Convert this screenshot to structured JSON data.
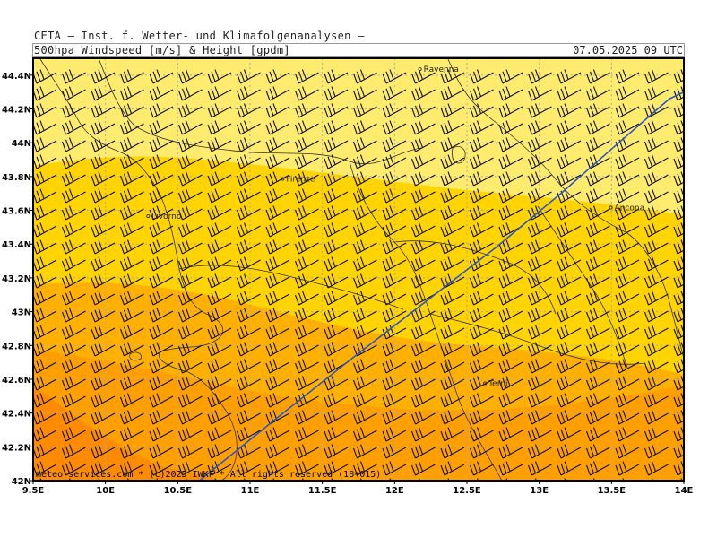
{
  "header": {
    "title": "CETA — Inst. f. Wetter- und Klimafolgenanalysen —",
    "parameter": "500hpa Windspeed [m/s] & Height [gpdm]",
    "datetime": "07.05.2025 09 UTC"
  },
  "map": {
    "lon_range": [
      9.5,
      14
    ],
    "lat_range": [
      42,
      44.5
    ],
    "lon_ticks": [
      {
        "value": 9.5,
        "label": "9.5E"
      },
      {
        "value": 10,
        "label": "10E"
      },
      {
        "value": 10.5,
        "label": "10.5E"
      },
      {
        "value": 11,
        "label": "11E"
      },
      {
        "value": 11.5,
        "label": "11.5E"
      },
      {
        "value": 12,
        "label": "12E"
      },
      {
        "value": 12.5,
        "label": "12.5E"
      },
      {
        "value": 13,
        "label": "13E"
      },
      {
        "value": 13.5,
        "label": "13.5E"
      },
      {
        "value": 14,
        "label": "14E"
      }
    ],
    "lat_ticks": [
      {
        "value": 42,
        "label": "42N"
      },
      {
        "value": 42.2,
        "label": "42.2N"
      },
      {
        "value": 42.4,
        "label": "42.4N"
      },
      {
        "value": 42.6,
        "label": "42.6N"
      },
      {
        "value": 42.8,
        "label": "42.8N"
      },
      {
        "value": 43,
        "label": "43N"
      },
      {
        "value": 43.2,
        "label": "43.2N"
      },
      {
        "value": 43.4,
        "label": "43.4N"
      },
      {
        "value": 43.6,
        "label": "43.6N"
      },
      {
        "value": 43.8,
        "label": "43.8N"
      },
      {
        "value": 44,
        "label": "44N"
      },
      {
        "value": 44.2,
        "label": "44.2N"
      },
      {
        "value": 44.4,
        "label": "44.4N"
      }
    ],
    "cities": [
      {
        "name": "Ravenna",
        "lon": 12.2,
        "lat": 44.42
      },
      {
        "name": "Firenze",
        "lon": 11.25,
        "lat": 43.77
      },
      {
        "name": "Livorno",
        "lon": 10.32,
        "lat": 43.55
      },
      {
        "name": "Ancona",
        "lon": 13.52,
        "lat": 43.6
      },
      {
        "name": "Terni",
        "lon": 12.65,
        "lat": 42.56
      }
    ],
    "height_contour": [
      {
        "lon": 10.65,
        "lat": 42.0
      },
      {
        "lon": 11.2,
        "lat": 42.38
      },
      {
        "lon": 11.7,
        "lat": 42.72
      },
      {
        "lon": 12.2,
        "lat": 43.05
      },
      {
        "lon": 12.7,
        "lat": 43.38
      },
      {
        "lon": 13.15,
        "lat": 43.7
      },
      {
        "lon": 13.55,
        "lat": 44.0
      },
      {
        "lon": 13.9,
        "lat": 44.26
      },
      {
        "lon": 14.0,
        "lat": 44.3
      }
    ],
    "wind_barb_pennant_count": 3,
    "colors": {
      "speed_band_1": "#ffec6e",
      "speed_band_2": "#ffd400",
      "speed_band_3": "#ffb000",
      "speed_band_4": "#ffa000",
      "speed_band_5": "#ff8c00",
      "contour_line": "#2c56c8",
      "barb": "#111111",
      "border": "#333333",
      "grid": "#aaaaaa"
    },
    "credit": "meteo-services.com * (c)2025 IWKF * All rights reserved (18+015)"
  }
}
